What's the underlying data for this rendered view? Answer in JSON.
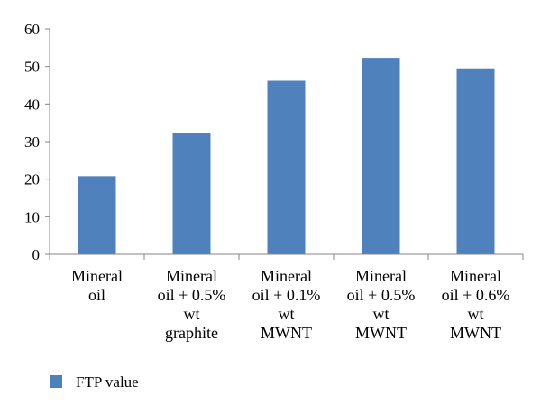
{
  "chart_data": {
    "type": "bar",
    "categories": [
      [
        "Mineral",
        "oil"
      ],
      [
        "Mineral",
        "oil + 0.5%",
        "wt",
        "graphite"
      ],
      [
        "Mineral",
        "oil + 0.1%",
        "wt",
        "MWNT"
      ],
      [
        "Mineral",
        "oil + 0.5%",
        "wt",
        "MWNT"
      ],
      [
        "Mineral",
        "oil + 0.6%",
        "wt",
        "MWNT"
      ]
    ],
    "series": [
      {
        "name": "FTP value",
        "values": [
          20.8,
          32.3,
          46.2,
          52.3,
          49.5
        ]
      }
    ],
    "ylim": [
      0,
      60
    ],
    "yticks": [
      "0",
      "10",
      "20",
      "30",
      "40",
      "50",
      "60"
    ],
    "title": "",
    "xlabel": "",
    "ylabel": "",
    "grid": false,
    "legend_position": "bottom-left",
    "colors": {
      "bar": "#4F81BD",
      "axis": "#868686"
    }
  }
}
